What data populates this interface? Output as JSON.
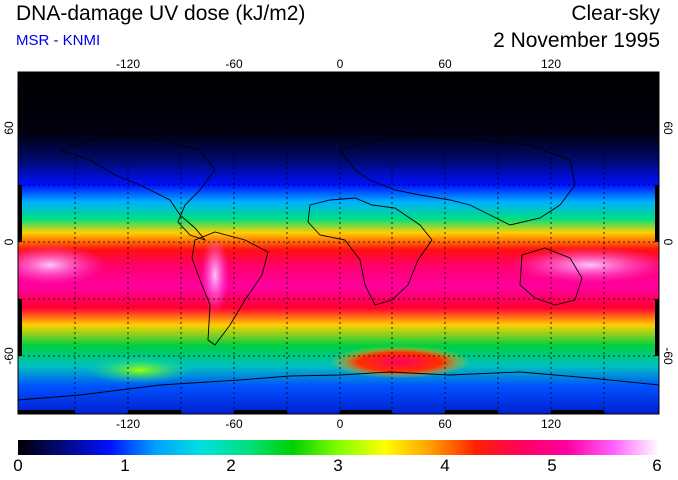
{
  "header": {
    "title": "DNA-damage UV dose (kJ/m2)",
    "subtitle": "MSR - KNMI",
    "condition": "Clear-sky",
    "date": "2 November 1995"
  },
  "map": {
    "projection": "equirectangular",
    "lon_ticks": [
      "-120",
      "-60",
      "0",
      "60",
      "120"
    ],
    "lat_ticks": [
      "60",
      "0",
      "-60"
    ],
    "lon_grid_step_deg": 30,
    "lat_grid_step_deg": 30,
    "frame_pattern": "alternating black/white bands every 30 degrees",
    "coastlines": "black outlines of continents",
    "field_description": "dose low (black) at high northern latitudes, peaks (pink/white) in the southern tropics, secondary maximum over Antarctic ozone region",
    "colors": {
      "background": "#ffffff",
      "grid": "#000000",
      "subtitle": "#0000ee"
    }
  },
  "colorbar": {
    "min": 0,
    "max": 6,
    "tick_labels": [
      "0",
      "1",
      "2",
      "3",
      "4",
      "5",
      "6"
    ],
    "colors": [
      "#000000",
      "#000a80",
      "#0010ff",
      "#00a0ff",
      "#00e0e0",
      "#00e080",
      "#00d000",
      "#80ff00",
      "#ffff00",
      "#ffa000",
      "#ff2000",
      "#ff0060",
      "#ff00a0",
      "#ff60ff",
      "#ffffff"
    ]
  }
}
